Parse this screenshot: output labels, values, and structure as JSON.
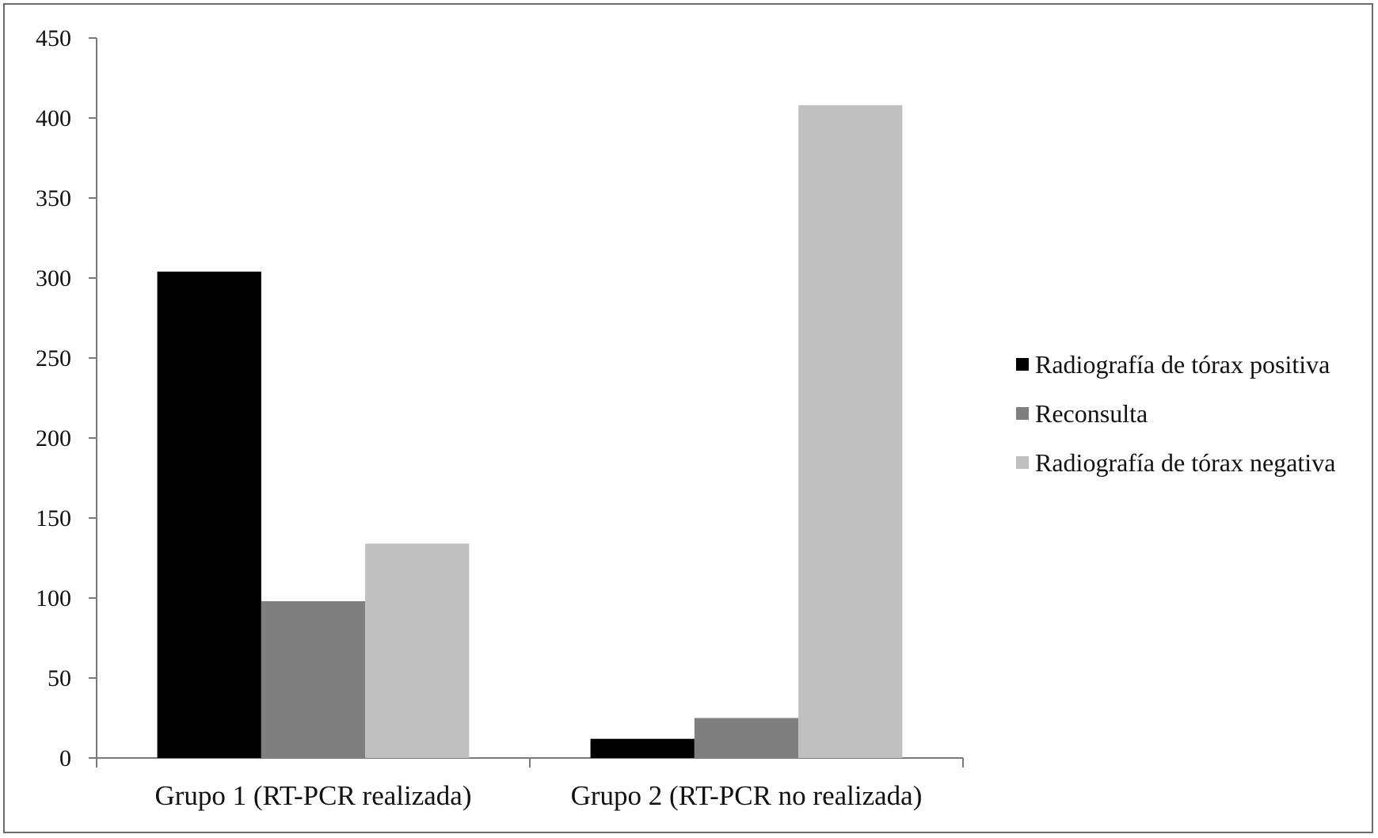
{
  "chart_data": {
    "type": "bar",
    "title": "",
    "xlabel": "",
    "ylabel": "",
    "categories": [
      "Grupo 1 (RT-PCR realizada)",
      "Grupo 2 (RT-PCR no realizada)"
    ],
    "series": [
      {
        "name": "Radiografía de tórax positiva",
        "values": [
          304,
          12
        ],
        "color": "#000000"
      },
      {
        "name": "Reconsulta",
        "values": [
          98,
          25
        ],
        "color": "#7f7f7f"
      },
      {
        "name": "Radiografía de tórax negativa",
        "values": [
          134,
          408
        ],
        "color": "#c0c0c0"
      }
    ],
    "ylim": [
      0,
      450
    ],
    "yticks": [
      0,
      50,
      100,
      150,
      200,
      250,
      300,
      350,
      400,
      450
    ],
    "ytick_labels": [
      "0",
      "50",
      "100",
      "150",
      "200",
      "250",
      "300",
      "350",
      "400",
      "450"
    ],
    "grid": false,
    "legend_position": "right"
  }
}
